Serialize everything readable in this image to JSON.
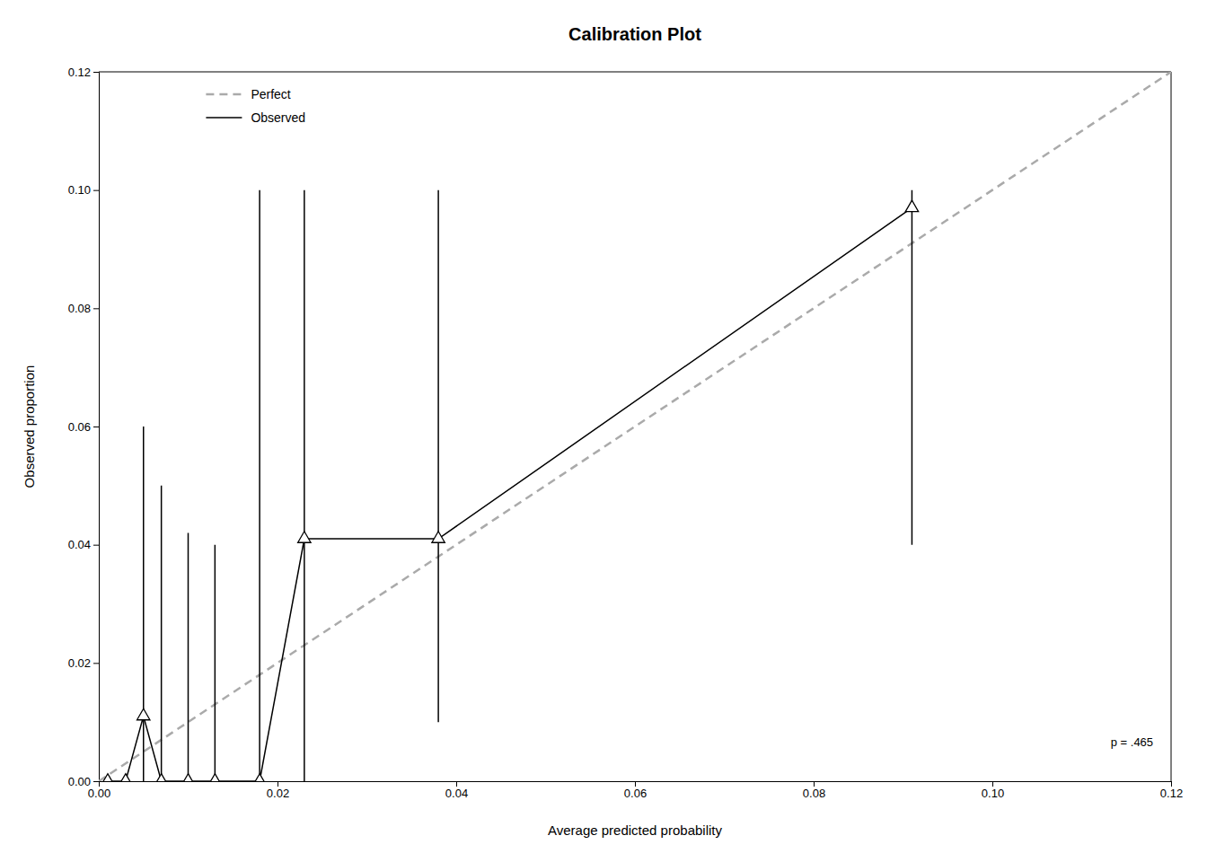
{
  "chart_data": {
    "type": "line",
    "title": "Calibration Plot",
    "x_label": "Average predicted probability",
    "y_label": "Observed proportion",
    "xlim": [
      0,
      0.12
    ],
    "ylim": [
      0,
      0.12
    ],
    "xticks": [
      {
        "value": 0,
        "label": "0.00"
      },
      0.02,
      0.04,
      0.06,
      0.08,
      {
        "value": 0.1,
        "label": "0.10"
      },
      0.12
    ],
    "yticks": [
      {
        "value": 0,
        "label": "0.00"
      },
      0.02,
      0.04,
      0.06,
      0.08,
      {
        "value": 0.1,
        "label": "0.10"
      },
      0.12
    ],
    "grid": false,
    "legend": "upper left",
    "series": [
      {
        "name": "Perfect",
        "type": "line",
        "color": "#aaaaaa",
        "line_style": "dashed",
        "x": [
          0,
          0.12
        ],
        "values": [
          0,
          0.12
        ]
      },
      {
        "name": "Observed",
        "type": "line",
        "color": "black",
        "line_style": "solid",
        "marker": "triangle",
        "x": [
          0.001,
          0.003,
          0.005,
          0.007,
          0.01,
          0.013,
          0.018,
          0.023,
          0.038,
          0.091
        ],
        "values": [
          0,
          0,
          0.011,
          0,
          0,
          0,
          0,
          0.041,
          0.041,
          0.097
        ],
        "ci_low": [
          0,
          0,
          0,
          0,
          0,
          0,
          0,
          0,
          0.01,
          0.04
        ],
        "ci_high": [
          0,
          0,
          0.06,
          0.05,
          0.042,
          0.04,
          0.1,
          0.1,
          0.1,
          0.1
        ]
      }
    ],
    "annotations": [
      {
        "text": "p = .465",
        "x": 0.118,
        "y": 0.006
      }
    ]
  }
}
